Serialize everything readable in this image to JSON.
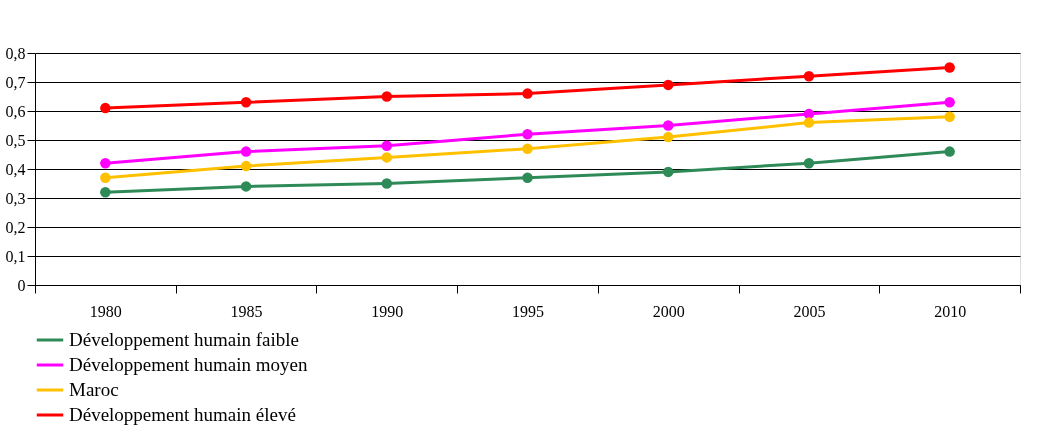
{
  "chart_data": {
    "type": "line",
    "categories": [
      "1980",
      "1985",
      "1990",
      "1995",
      "2000",
      "2005",
      "2010"
    ],
    "series": [
      {
        "name": "Développement humain faible",
        "color": "#2e8b57",
        "values": [
          0.32,
          0.34,
          0.35,
          0.37,
          0.39,
          0.42,
          0.46
        ]
      },
      {
        "name": "Développement humain moyen",
        "color": "#ff00ff",
        "values": [
          0.42,
          0.46,
          0.48,
          0.52,
          0.55,
          0.59,
          0.63
        ]
      },
      {
        "name": "Maroc",
        "color": "#ffc000",
        "values": [
          0.37,
          0.41,
          0.44,
          0.47,
          0.51,
          0.56,
          0.58
        ]
      },
      {
        "name": "Développement humain élevé",
        "color": "#ff0000",
        "values": [
          0.61,
          0.63,
          0.65,
          0.66,
          0.69,
          0.72,
          0.75
        ]
      }
    ],
    "ylim": [
      0,
      0.8
    ],
    "yticks": [
      0,
      {
        "value": 0.1,
        "label": "0,1"
      },
      {
        "value": 0.2,
        "label": "0,2"
      },
      {
        "value": 0.3,
        "label": "0,3"
      },
      {
        "value": 0.4,
        "label": "0,4"
      },
      {
        "value": 0.5,
        "label": "0,5"
      },
      {
        "value": 0.6,
        "label": "0,6"
      },
      {
        "value": 0.7,
        "label": "0,7"
      },
      {
        "value": 0.8,
        "label": "0,8"
      }
    ],
    "grid": "y",
    "legend": "bottom left",
    "marker": "circle",
    "line_style": "solid"
  }
}
